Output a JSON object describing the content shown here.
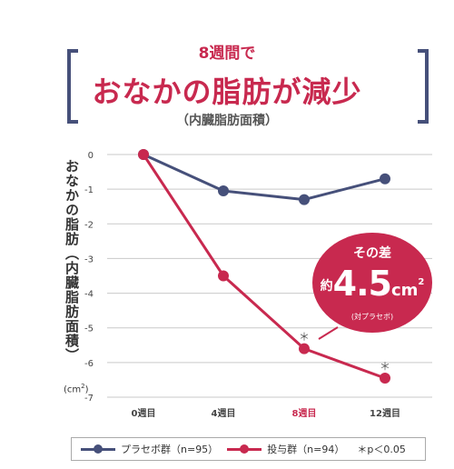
{
  "header": {
    "subtitle": "8週間で",
    "title": "おなかの脂肪が減少",
    "title_note": "（内臓脂肪面積）"
  },
  "axis": {
    "ylabel": "おなかの脂肪（内臓脂肪面積）",
    "yunit": "(cm",
    "yunit_sup": "2",
    "yunit_close": ")"
  },
  "callout": {
    "head": "その差",
    "prefix": "約",
    "value": "4.5",
    "unit": "cm",
    "unit_sup": "2",
    "note": "(対プラセボ)"
  },
  "legend": {
    "placebo": "プラセボ群（n=95）",
    "treatment": "投与群（n=94）",
    "significance": "＊p＜0.05"
  },
  "colors": {
    "placebo": "#46507a",
    "treatment": "#c8294f",
    "grid": "#c9c9c9",
    "highlight_tick": "#c8294f"
  },
  "chart_data": {
    "type": "line",
    "categories": [
      "0週目",
      "4週目",
      "8週目",
      "12週目"
    ],
    "highlight_category": "8週目",
    "yticks": [
      "0",
      "-1",
      "-2",
      "-3",
      "-4",
      "-5",
      "-6",
      "-7"
    ],
    "ylim": [
      -7,
      0
    ],
    "grid": true,
    "legend_position": "bottom",
    "series": [
      {
        "name": "プラセボ群（n=95）",
        "values": [
          0,
          -1.05,
          -1.3,
          -0.7
        ]
      },
      {
        "name": "投与群（n=94）",
        "values": [
          0,
          -3.5,
          -5.6,
          -6.45
        ],
        "significant": [
          false,
          false,
          true,
          true
        ]
      }
    ],
    "significance_mark": "＊"
  }
}
